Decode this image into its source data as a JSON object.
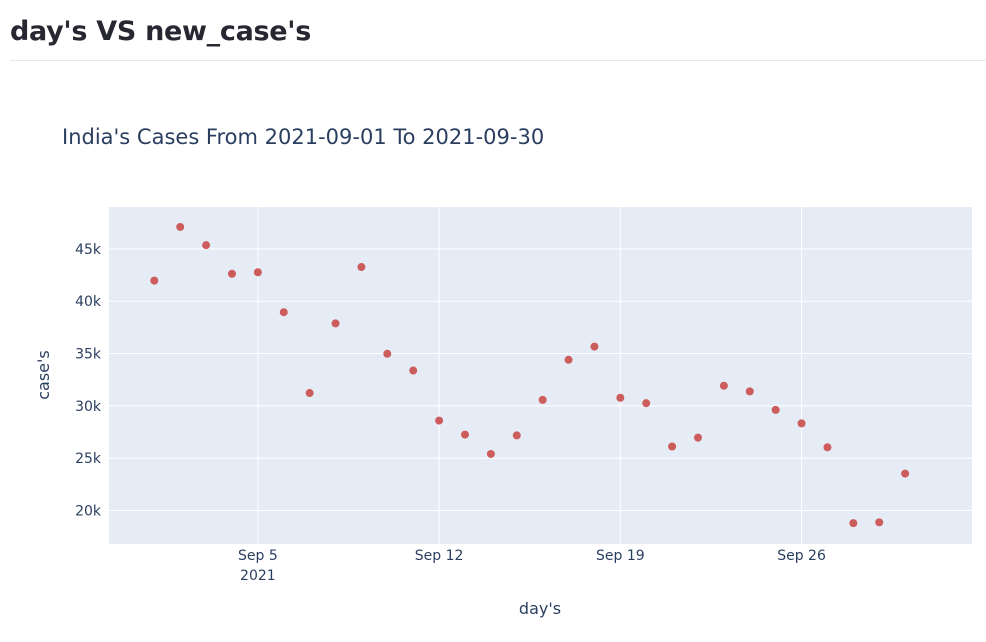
{
  "page": {
    "title": "day's VS new_case's"
  },
  "colors": {
    "plot_bg": "#e5ecf6",
    "grid": "#ffffff",
    "marker": "#cd5c5c",
    "text": "#2a3f5f"
  },
  "chart_data": {
    "type": "scatter",
    "title": "India's Cases From 2021-09-01 To 2021-09-30",
    "xlabel": "day's",
    "ylabel": "case's",
    "x_ticks": [
      "2021-09-05",
      "2021-09-12",
      "2021-09-19",
      "2021-09-26"
    ],
    "x_tick_labels": [
      "Sep 5",
      "Sep 12",
      "Sep 19",
      "Sep 26"
    ],
    "x_tick_sublabel": "2021",
    "y_ticks": [
      20000,
      25000,
      30000,
      35000,
      40000,
      45000
    ],
    "y_tick_labels": [
      "20k",
      "25k",
      "30k",
      "35k",
      "40k",
      "45k"
    ],
    "ylim": [
      16800,
      49000
    ],
    "xlim": [
      "2021-08-30T06:00",
      "2021-10-02T14:00"
    ],
    "grid": true,
    "x": [
      "2021-09-01",
      "2021-09-02",
      "2021-09-03",
      "2021-09-04",
      "2021-09-05",
      "2021-09-06",
      "2021-09-07",
      "2021-09-08",
      "2021-09-09",
      "2021-09-10",
      "2021-09-11",
      "2021-09-12",
      "2021-09-13",
      "2021-09-14",
      "2021-09-15",
      "2021-09-16",
      "2021-09-17",
      "2021-09-18",
      "2021-09-19",
      "2021-09-20",
      "2021-09-21",
      "2021-09-22",
      "2021-09-23",
      "2021-09-24",
      "2021-09-25",
      "2021-09-26",
      "2021-09-27",
      "2021-09-28",
      "2021-09-29",
      "2021-09-30"
    ],
    "y": [
      41965,
      47092,
      45352,
      42618,
      42766,
      38948,
      31222,
      37875,
      43263,
      34973,
      33376,
      28591,
      27254,
      25404,
      27176,
      30570,
      34403,
      35662,
      30773,
      30256,
      26115,
      26964,
      31923,
      31382,
      29616,
      28326,
      26041,
      18795,
      18870,
      23529
    ]
  }
}
